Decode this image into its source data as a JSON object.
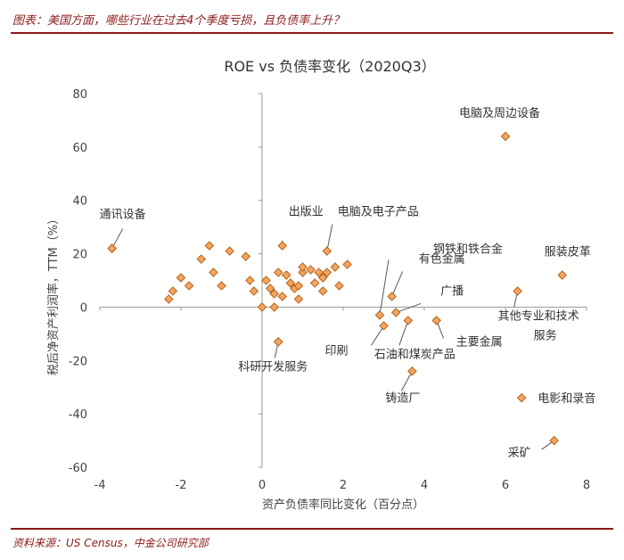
{
  "header": {
    "text": "图表：美国方面，哪些行业在过去4个季度亏损，且负债率上升？"
  },
  "footer": {
    "text": "资料来源：US Census，中金公司研究部"
  },
  "chart_data": {
    "type": "scatter",
    "title": "ROE vs 负债率变化（2020Q3）",
    "xlabel": "资产负债率同比变化（百分点）",
    "ylabel": "税后净资产利润率，TTM（%）",
    "xlim": [
      -4,
      8
    ],
    "ylim": [
      -60,
      80
    ],
    "xticks": [
      -4,
      -2,
      0,
      2,
      4,
      6,
      8
    ],
    "yticks": [
      -60,
      -40,
      -20,
      0,
      20,
      40,
      60,
      80
    ],
    "grid": false,
    "marker_color": "#f4a460",
    "marker_edge": "#b5651d",
    "points": [
      {
        "x": -3.7,
        "y": 22
      },
      {
        "x": -2.3,
        "y": 3
      },
      {
        "x": -2.2,
        "y": 6
      },
      {
        "x": -2.0,
        "y": 11
      },
      {
        "x": -1.8,
        "y": 8
      },
      {
        "x": -1.5,
        "y": 18
      },
      {
        "x": -1.2,
        "y": 13
      },
      {
        "x": -1.0,
        "y": 8
      },
      {
        "x": -1.3,
        "y": 23
      },
      {
        "x": -0.8,
        "y": 21
      },
      {
        "x": -0.4,
        "y": 19
      },
      {
        "x": -0.3,
        "y": 10
      },
      {
        "x": -0.2,
        "y": 6
      },
      {
        "x": 0.0,
        "y": 0
      },
      {
        "x": 0.1,
        "y": 10
      },
      {
        "x": 0.2,
        "y": 7
      },
      {
        "x": 0.3,
        "y": 0
      },
      {
        "x": 0.3,
        "y": 5
      },
      {
        "x": 0.4,
        "y": 13
      },
      {
        "x": 0.5,
        "y": 4
      },
      {
        "x": 0.6,
        "y": 12
      },
      {
        "x": 0.7,
        "y": 9
      },
      {
        "x": 0.8,
        "y": 7
      },
      {
        "x": 0.9,
        "y": 3
      },
      {
        "x": 1.0,
        "y": 13
      },
      {
        "x": 1.0,
        "y": 15
      },
      {
        "x": 1.2,
        "y": 14
      },
      {
        "x": 1.3,
        "y": 9
      },
      {
        "x": 1.4,
        "y": 13
      },
      {
        "x": 1.5,
        "y": 11
      },
      {
        "x": 1.6,
        "y": 13
      },
      {
        "x": 1.8,
        "y": 15
      },
      {
        "x": 1.9,
        "y": 8
      },
      {
        "x": 2.1,
        "y": 16
      },
      {
        "x": 1.5,
        "y": 6
      },
      {
        "x": 0.9,
        "y": 8
      },
      {
        "x": 0.4,
        "y": -13
      },
      {
        "x": 0.5,
        "y": 23,
        "label": "出版业"
      },
      {
        "x": 1.6,
        "y": 21,
        "label": "电脑及电子产品"
      },
      {
        "x": 2.9,
        "y": -3,
        "label": "钢铁和铁合金"
      },
      {
        "x": 3.2,
        "y": 4,
        "label": "有色金属"
      },
      {
        "x": 3.3,
        "y": -2,
        "label": "广播"
      },
      {
        "x": 3.0,
        "y": -7,
        "label": "印刷"
      },
      {
        "x": 3.6,
        "y": -5,
        "label": "石油和煤炭产品"
      },
      {
        "x": 4.3,
        "y": -5,
        "label": "主要金属"
      },
      {
        "x": 3.7,
        "y": -24,
        "label": "铸造厂"
      },
      {
        "x": 6.0,
        "y": 64,
        "label": "电脑及周边设备"
      },
      {
        "x": 7.4,
        "y": 12,
        "label": "服装皮革"
      },
      {
        "x": 6.3,
        "y": 6,
        "label": "其他专业和技术服务"
      },
      {
        "x": 6.4,
        "y": -34,
        "label": "电影和录音"
      },
      {
        "x": 7.2,
        "y": -50,
        "label": "采矿"
      },
      {
        "x": -3.7,
        "y": 22,
        "label": "通讯设备"
      },
      {
        "x": 0.4,
        "y": -13,
        "label": "科研开发服务"
      }
    ]
  }
}
